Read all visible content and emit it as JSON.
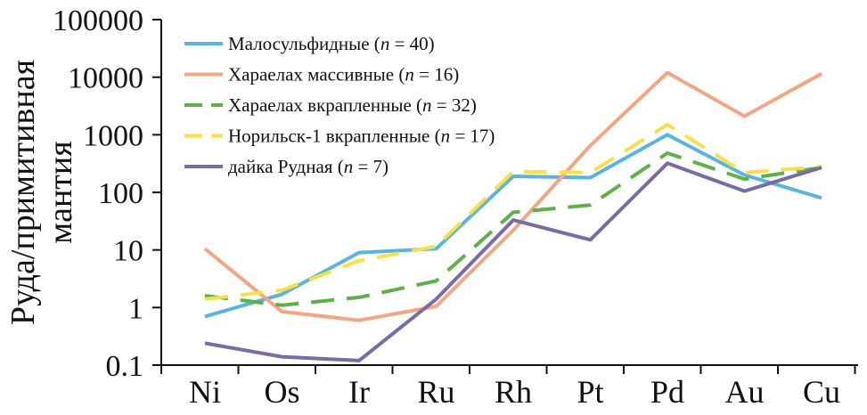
{
  "chart_data": {
    "type": "line",
    "y_scale": "log",
    "ylim": [
      0.1,
      100000
    ],
    "yticks": [
      "0.1",
      "1",
      "10",
      "100",
      "1000",
      "10000",
      "100000"
    ],
    "ylabel_line1": "Руда/примитивная",
    "ylabel_line2": "мантия",
    "categories": [
      "Ni",
      "Os",
      "Ir",
      "Ru",
      "Rh",
      "Pt",
      "Pd",
      "Au",
      "Cu"
    ],
    "legend_position": "top-left",
    "series": [
      {
        "name_prefix": "Малосульфидные (",
        "name_var": "n",
        "name_suffix": " = 40)",
        "color": "#5ab4e0",
        "dash": "solid",
        "values": [
          0.7,
          1.7,
          9,
          10.5,
          190,
          180,
          1000,
          200,
          80
        ]
      },
      {
        "name_prefix": "Хараелах массивные (",
        "name_var": "n",
        "name_suffix": " = 16)",
        "color": "#f4a683",
        "dash": "solid",
        "values": [
          10.5,
          0.85,
          0.6,
          1.05,
          22,
          650,
          12000,
          2100,
          11500
        ]
      },
      {
        "name_prefix": "Хараелах вкрапленные (",
        "name_var": "n",
        "name_suffix": " = 32)",
        "color": "#5cb247",
        "dash": "dashed",
        "values": [
          1.6,
          1.1,
          1.5,
          2.9,
          45,
          60,
          480,
          170,
          270
        ]
      },
      {
        "name_prefix": "Норильск-1 вкрапленные (",
        "name_var": "n",
        "name_suffix": " = 17)",
        "color": "#f7e04a",
        "dash": "dashed",
        "values": [
          1.4,
          2.0,
          6.5,
          11.5,
          230,
          220,
          1500,
          220,
          280
        ]
      },
      {
        "name_prefix": "дайка Рудная (",
        "name_var": "n",
        "name_suffix": " = 7)",
        "color": "#7a6aa8",
        "dash": "solid",
        "values": [
          0.24,
          0.14,
          0.12,
          1.4,
          33,
          15,
          320,
          105,
          270
        ]
      }
    ]
  }
}
